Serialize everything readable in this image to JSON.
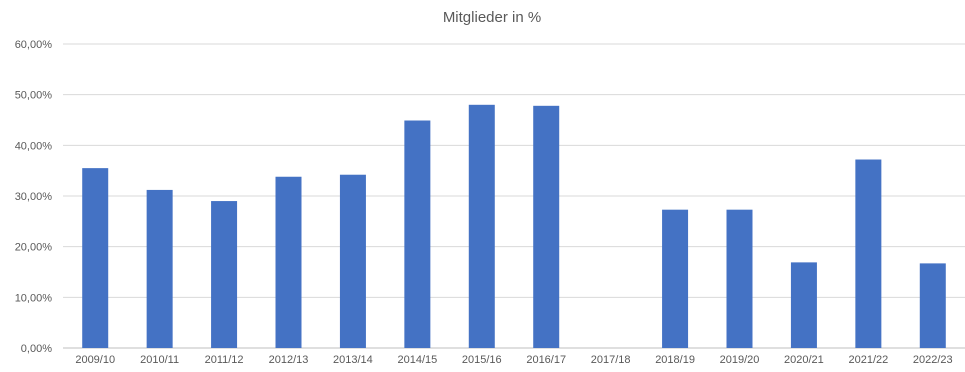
{
  "chart_data": {
    "type": "bar",
    "title": "Mitglieder in %",
    "xlabel": "",
    "ylabel": "",
    "ylim": [
      0,
      60
    ],
    "ytick_values": [
      0,
      10,
      20,
      30,
      40,
      50,
      60
    ],
    "ytick_labels": [
      "0,00%",
      "10,00%",
      "20,00%",
      "30,00%",
      "40,00%",
      "50,00%",
      "60,00%"
    ],
    "categories": [
      "2009/10",
      "2010/11",
      "2011/12",
      "2012/13",
      "2013/14",
      "2014/15",
      "2015/16",
      "2016/17",
      "2017/18",
      "2018/19",
      "2019/20",
      "2020/21",
      "2021/22",
      "2022/23"
    ],
    "values": [
      35.5,
      31.2,
      29.0,
      33.8,
      34.2,
      44.9,
      48.0,
      47.8,
      0,
      27.3,
      27.3,
      16.9,
      37.2,
      16.7
    ],
    "bar_color": "#4472c4",
    "grid_color": "#d9d9d9",
    "grid": true,
    "legend": false
  }
}
